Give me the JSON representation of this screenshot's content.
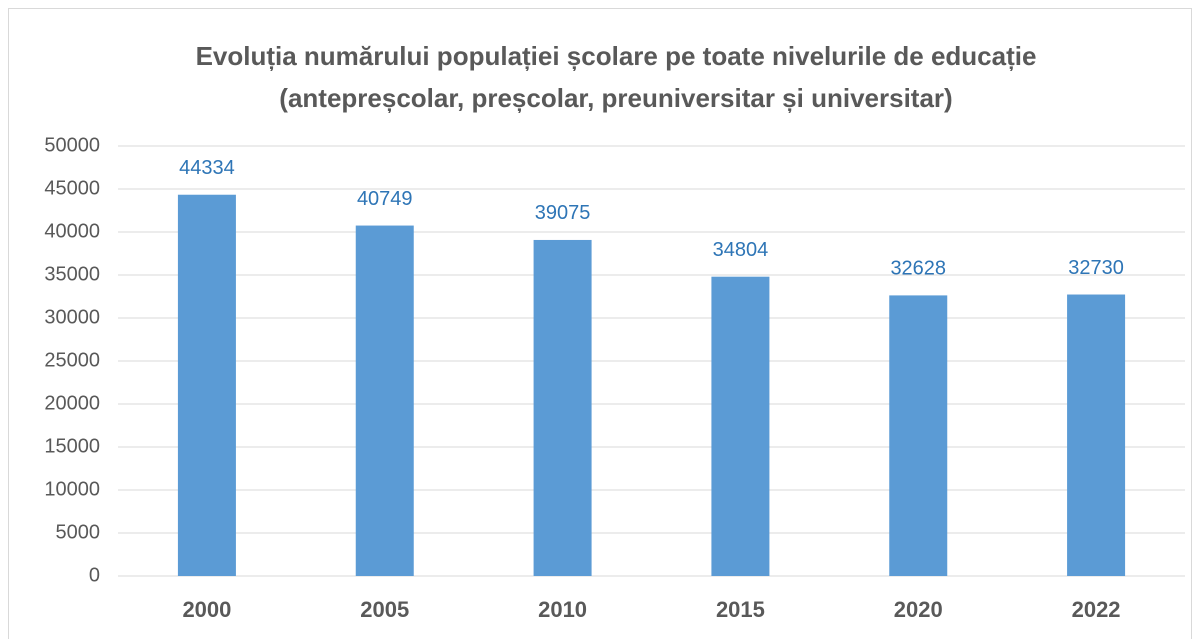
{
  "chart_data": {
    "type": "bar",
    "title": [
      "Evoluția numărului populației școlare pe toate nivelurile de educație",
      "(antepreșcolar, preșcolar, preuniversitar și universitar)"
    ],
    "categories": [
      "2000",
      "2005",
      "2010",
      "2015",
      "2020",
      "2022"
    ],
    "values": [
      44334,
      40749,
      39075,
      34804,
      32628,
      32730
    ],
    "color": "#5b9bd5",
    "label_color": "#2e75b6",
    "ylim": [
      0,
      50000
    ],
    "yticks": [
      0,
      5000,
      10000,
      15000,
      20000,
      25000,
      30000,
      35000,
      40000,
      45000,
      50000
    ],
    "grid": true
  }
}
